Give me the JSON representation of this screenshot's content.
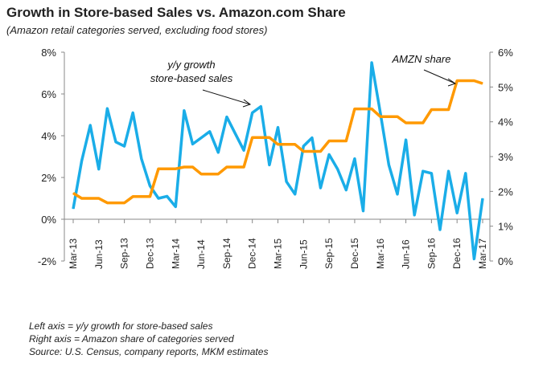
{
  "chart_data": {
    "type": "line",
    "title": "Growth in Store-based Sales vs. Amazon.com Share",
    "subtitle": "(Amazon retail categories served, excluding food stores)",
    "x": [
      "Mar-13",
      "Apr-13",
      "May-13",
      "Jun-13",
      "Jul-13",
      "Aug-13",
      "Sep-13",
      "Oct-13",
      "Nov-13",
      "Dec-13",
      "Jan-14",
      "Feb-14",
      "Mar-14",
      "Apr-14",
      "May-14",
      "Jun-14",
      "Jul-14",
      "Aug-14",
      "Sep-14",
      "Oct-14",
      "Nov-14",
      "Dec-14",
      "Jan-15",
      "Feb-15",
      "Mar-15",
      "Apr-15",
      "May-15",
      "Jun-15",
      "Jul-15",
      "Aug-15",
      "Sep-15",
      "Oct-15",
      "Nov-15",
      "Dec-15",
      "Jan-16",
      "Feb-16",
      "Mar-16",
      "Apr-16",
      "May-16",
      "Jun-16",
      "Jul-16",
      "Aug-16",
      "Sep-16",
      "Oct-16",
      "Nov-16",
      "Dec-16",
      "Jan-17",
      "Feb-17",
      "Mar-17"
    ],
    "xticks": [
      "Mar-13",
      "Jun-13",
      "Sep-13",
      "Dec-13",
      "Mar-14",
      "Jun-14",
      "Sep-14",
      "Dec-14",
      "Mar-15",
      "Jun-15",
      "Sep-15",
      "Dec-15",
      "Mar-16",
      "Jun-16",
      "Sep-16",
      "Dec-16",
      "Mar-17"
    ],
    "series": [
      {
        "name": "y/y growth store-based sales",
        "axis": "left",
        "color": "#1AADE8",
        "values": [
          0.5,
          2.8,
          4.5,
          2.4,
          5.3,
          3.7,
          3.5,
          5.1,
          2.9,
          1.6,
          1.0,
          1.1,
          0.6,
          5.2,
          3.6,
          3.9,
          4.2,
          3.2,
          4.9,
          4.1,
          3.3,
          5.1,
          5.4,
          2.6,
          4.4,
          1.8,
          1.2,
          3.5,
          3.9,
          1.5,
          3.1,
          2.4,
          1.4,
          2.9,
          0.4,
          7.5,
          5.1,
          2.6,
          1.2,
          3.8,
          0.2,
          2.3,
          2.2,
          -0.5,
          2.3,
          0.3,
          2.2,
          -1.9,
          1.0
        ]
      },
      {
        "name": "AMZN share",
        "axis": "right",
        "color": "#FF9900",
        "values": [
          1.95,
          1.8,
          1.8,
          1.8,
          1.67,
          1.67,
          1.67,
          1.85,
          1.85,
          1.85,
          2.65,
          2.65,
          2.65,
          2.7,
          2.7,
          2.5,
          2.5,
          2.5,
          2.7,
          2.7,
          2.7,
          3.55,
          3.55,
          3.55,
          3.35,
          3.35,
          3.35,
          3.15,
          3.15,
          3.15,
          3.45,
          3.45,
          3.45,
          4.37,
          4.37,
          4.37,
          4.15,
          4.15,
          4.15,
          3.97,
          3.97,
          3.97,
          4.35,
          4.35,
          4.35,
          5.18,
          5.18,
          5.18,
          5.1
        ]
      }
    ],
    "left_axis": {
      "ylim": [
        -2,
        8
      ],
      "ticks": [
        "-2%",
        "0%",
        "2%",
        "4%",
        "6%",
        "8%"
      ]
    },
    "right_axis": {
      "ylim": [
        0,
        6
      ],
      "ticks": [
        "0%",
        "1%",
        "2%",
        "3%",
        "4%",
        "5%",
        "6%"
      ]
    },
    "annotations": [
      "y/y growth",
      "store-based sales",
      "AMZN share"
    ],
    "grid": false,
    "legend": "none"
  },
  "notes": [
    "Left axis = y/y growth for store-based sales",
    "Right axis = Amazon share of categories served",
    "Source: U.S. Census, company reports, MKM estimates"
  ]
}
